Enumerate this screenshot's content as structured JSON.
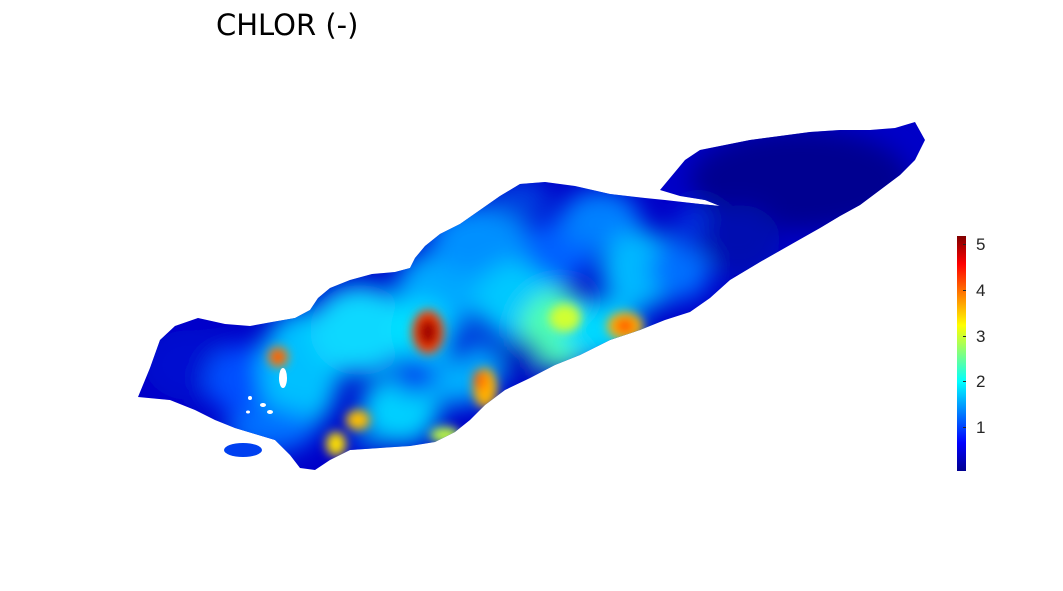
{
  "title": "CHLOR (-)",
  "colorbar": {
    "colormap": "jet",
    "ticks": [
      "1",
      "2",
      "3",
      "4",
      "5"
    ],
    "range": [
      0,
      5.2
    ]
  },
  "colors": {
    "deep_blue": "#00008f",
    "blue": "#0000ff",
    "light_blue": "#0080ff",
    "cyan": "#00ffff",
    "yellow": "#ffff00",
    "orange": "#ff8000",
    "red": "#ff0000",
    "dark_red": "#800000"
  }
}
